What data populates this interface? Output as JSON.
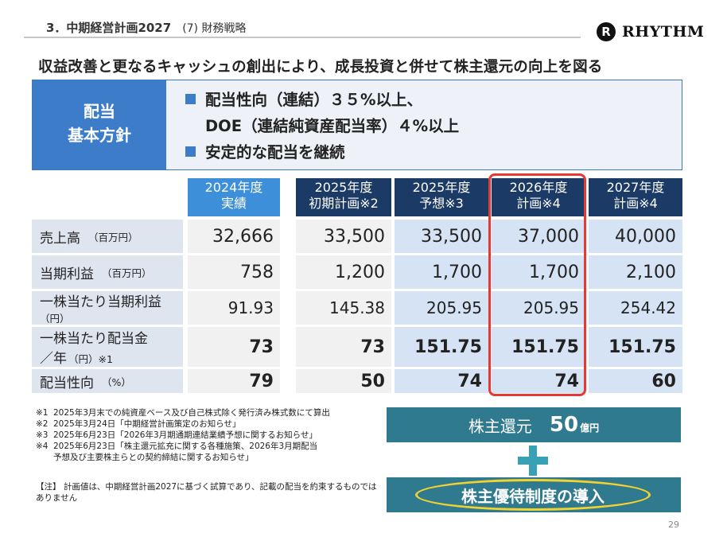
{
  "header": {
    "section": "3．中期経営計画2027",
    "subsection": "(7) 財務戦略",
    "logo_text": "RHYTHM",
    "logo_mark": "R"
  },
  "headline": "収益改善と更なるキャッシュの創出により、成長投資と併せて株主還元の向上を図る",
  "policy": {
    "label_line1": "配当",
    "label_line2": "基本方針",
    "line1": "配当性向（連結）３５%以上、",
    "line2": "DOE（連結純資産配当率）４%以上",
    "line3": "安定的な配当を継続"
  },
  "table": {
    "columns": [
      {
        "line1": "2024年度",
        "line2": "実績"
      },
      {
        "line1": "2025年度",
        "line2": "初期計画※2"
      },
      {
        "line1": "2025年度",
        "line2": "予想※3"
      },
      {
        "line1": "2026年度",
        "line2": "計画※4"
      },
      {
        "line1": "2027年度",
        "line2": "計画※4"
      }
    ],
    "rows": [
      {
        "label": "売上高",
        "unit": "（百万円）",
        "values": [
          "32,666",
          "33,500",
          "33,500",
          "37,000",
          "40,000"
        ]
      },
      {
        "label": "当期利益",
        "unit": "（百万円）",
        "values": [
          "758",
          "1,200",
          "1,700",
          "1,700",
          "2,100"
        ]
      },
      {
        "label": "一株当たり当期利益",
        "unit": "（円）",
        "values": [
          "91.93",
          "145.38",
          "205.95",
          "205.95",
          "254.42"
        ]
      },
      {
        "label": "一株当たり配当金",
        "label2": "／年",
        "unit": "（円）※1",
        "values": [
          "73",
          "73",
          "151.75",
          "151.75",
          "151.75"
        ]
      },
      {
        "label": "配当性向",
        "unit": "（%）",
        "values": [
          "79",
          "50",
          "74",
          "74",
          "60"
        ]
      }
    ]
  },
  "notes": [
    {
      "k": "※1",
      "t": "2025年3月末での純資産ベース及び自己株式除く発行済み株式数にて算出"
    },
    {
      "k": "※2",
      "t": "2025年3月24日「中期経営計画策定のお知らせ」"
    },
    {
      "k": "※3",
      "t": "2025年6月23日「2026年3月期通期連結業績予想に関するお知らせ」"
    },
    {
      "k": "※4",
      "t": "2025年6月23日「株主還元拡充に関する各種施策、2026年3月期配当"
    },
    {
      "k": "",
      "t": "予想及び主要株主らとの契約締結に関するお知らせ」"
    }
  ],
  "caveat": "【注】 計画値は、中期経営計画2027に基づく試算であり、記載の配当を約束するものではありません",
  "returns": {
    "label": "株主還元",
    "amount": "50",
    "unit": "億円",
    "perk": "株主優待制度の導入"
  },
  "page_number": "29",
  "colors": {
    "accent_blue": "#3d7cc9",
    "navy": "#1b3a66",
    "teal": "#2f7a8f",
    "highlight_red": "#e53935",
    "oval_yellow": "#f2d22e"
  }
}
